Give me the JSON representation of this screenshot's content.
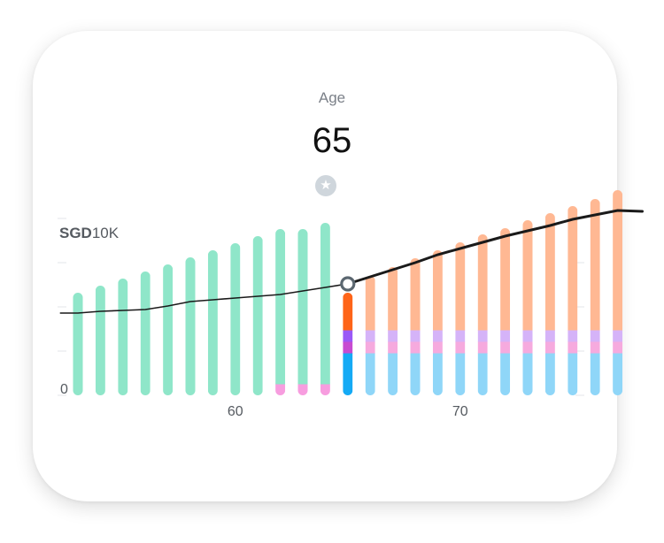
{
  "header": {
    "label": "Age",
    "value": "65"
  },
  "icons": {
    "favorite": "star-icon"
  },
  "colors": {
    "green": "#8fe6c9",
    "pink": "#f79ddf",
    "blue_bright": "#14aaf5",
    "purple_bright": "#9a58f7",
    "magenta_bright": "#c74bd1",
    "orange_bright": "#fe6418",
    "blue_light": "#8fd6f8",
    "pink_light": "#f6aade",
    "lavender_light": "#d5b3f8",
    "orange_light": "#ffb893",
    "line": "#1a1a1a",
    "marker_stroke": "#5b6770"
  },
  "chart_data": {
    "type": "bar",
    "unit_label_bold": "SGD",
    "unit_label_value": "10K",
    "y_zero_label": "0",
    "ylim": [
      0,
      20000
    ],
    "x": [
      53,
      54,
      55,
      56,
      57,
      58,
      59,
      60,
      61,
      62,
      63,
      64,
      65,
      66,
      67,
      68,
      69,
      70,
      71,
      72,
      73,
      74,
      75,
      76,
      77
    ],
    "x_tick_labels": [
      {
        "x": 60,
        "label": "60"
      },
      {
        "x": 70,
        "label": "70"
      }
    ],
    "selected_age": 65,
    "series": [
      {
        "key": "blue",
        "values": [
          0,
          0,
          0,
          0,
          0,
          0,
          0,
          0,
          0,
          0,
          0,
          0,
          4800,
          4800,
          4800,
          4800,
          4800,
          4800,
          4800,
          4800,
          4800,
          4800,
          4800,
          4800,
          4800
        ]
      },
      {
        "key": "pink",
        "values": [
          0,
          0,
          0,
          0,
          0,
          0,
          0,
          0,
          0,
          1300,
          1300,
          1300,
          1300,
          1300,
          1300,
          1300,
          1300,
          1300,
          1300,
          1300,
          1300,
          1300,
          1300,
          1300,
          1300
        ]
      },
      {
        "key": "purple",
        "values": [
          0,
          0,
          0,
          0,
          0,
          0,
          0,
          0,
          0,
          0,
          0,
          0,
          1300,
          1300,
          1300,
          1300,
          1300,
          1300,
          1300,
          1300,
          1300,
          1300,
          1300,
          1300,
          1300
        ]
      },
      {
        "key": "green",
        "values": [
          11600,
          12400,
          13200,
          14000,
          14800,
          15600,
          16400,
          17200,
          18000,
          17500,
          17500,
          18200,
          0,
          0,
          0,
          0,
          0,
          0,
          0,
          0,
          0,
          0,
          0,
          0,
          0
        ]
      },
      {
        "key": "orange",
        "values": [
          0,
          0,
          0,
          0,
          0,
          0,
          0,
          0,
          0,
          0,
          0,
          0,
          4200,
          6100,
          7100,
          8100,
          9000,
          9900,
          10800,
          11500,
          12400,
          13200,
          14000,
          14800,
          15800
        ]
      }
    ],
    "line": [
      9300,
      9500,
      9600,
      9700,
      10100,
      10600,
      10800,
      11000,
      11200,
      11400,
      11800,
      12200,
      12600,
      13400,
      14200,
      15000,
      15900,
      16600,
      17300,
      18000,
      18600,
      19200,
      19900,
      20400,
      20900
    ],
    "line_x_end": 78.1,
    "line_y_end": 20800,
    "line_x_start": 52.2,
    "line_y_start": 9300
  }
}
